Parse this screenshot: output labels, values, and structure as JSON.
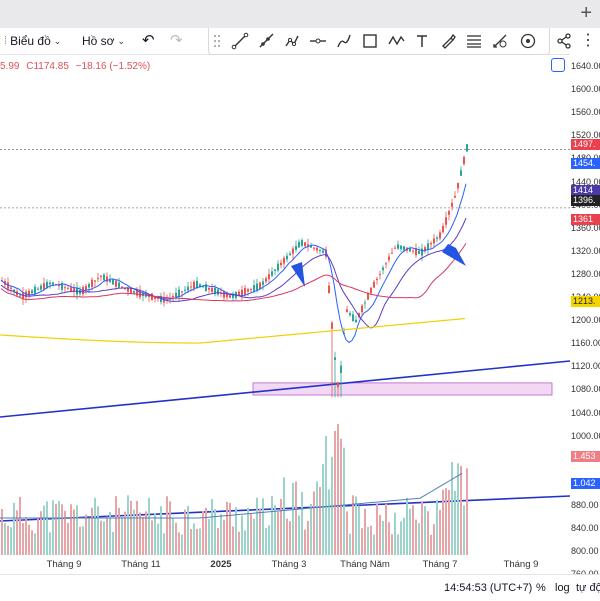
{
  "tabs": {
    "add_label": "+"
  },
  "toolbar": {
    "chart_label": "Biểu đồ",
    "profile_label": "Hồ sơ"
  },
  "ohlc": {
    "partial": "5.99",
    "close": "C1174.85",
    "change": "−18.16 (−1.52%)"
  },
  "price_badges": [
    {
      "label": "1497.",
      "color": "#e8414f"
    },
    {
      "label": "1454.",
      "color": "#2962ff"
    },
    {
      "label": "1414",
      "color": "#4a3aa8"
    },
    {
      "label": "1396.",
      "color": "#222222"
    },
    {
      "label": "1361",
      "color": "#e8414f"
    },
    {
      "label": "1213.",
      "color": "#f5d400"
    }
  ],
  "volume_badges": [
    {
      "label": "1.453",
      "color": "#f07c84"
    },
    {
      "label": "1.042",
      "color": "#2962ff"
    }
  ],
  "status": {
    "time": "14:54:53 (UTC+7)",
    "pct": "%",
    "log": "log",
    "auto": "tự độ"
  },
  "chart_data": {
    "type": "candlestick",
    "y_ticks": [
      "1640.00",
      "1600.00",
      "1560.00",
      "1520.00",
      "1480.00",
      "1440.00",
      "1400.00",
      "1360.00",
      "1320.00",
      "1280.00",
      "1240.00",
      "1200.00",
      "1160.00",
      "1120.00",
      "1080.00",
      "1040.00",
      "1000.00",
      "960.00",
      "920.00",
      "880.00",
      "840.00",
      "800.00",
      "760.00"
    ],
    "x_ticks": [
      "Tháng 9",
      "Tháng 11",
      "2025",
      "Tháng 3",
      "Tháng Năm",
      "Tháng 7",
      "Tháng 9"
    ],
    "price_range": [
      1060,
      1500
    ],
    "horizontal_levels": [
      1497,
      1396
    ],
    "support_zone": [
      1072,
      1093
    ],
    "colors": {
      "up": "#26a69a",
      "down": "#ef5350",
      "ma_short": "#2962ff",
      "ma_mid": "#5b3cc4",
      "ma_long": "#d63864",
      "ma_slow": "#f0d000",
      "trendline": "#2431c8",
      "zone": "#e9b8ef"
    }
  }
}
